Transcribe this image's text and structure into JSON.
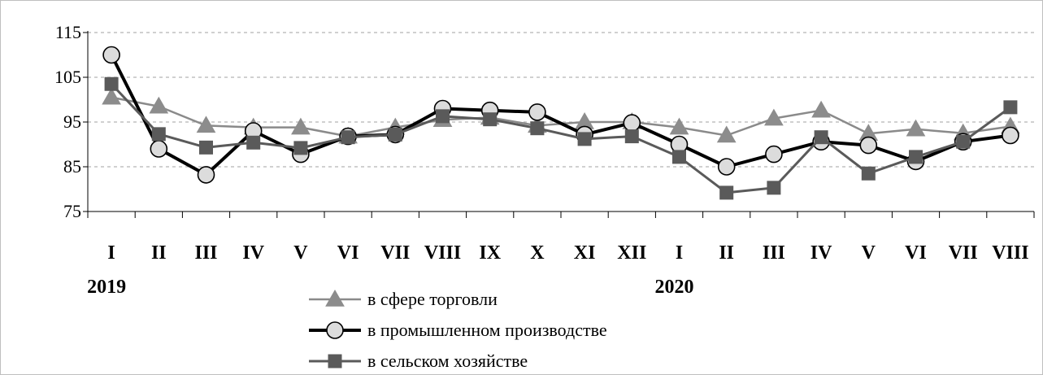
{
  "chart_data": {
    "type": "line",
    "categories": [
      "I",
      "II",
      "III",
      "IV",
      "V",
      "VI",
      "VII",
      "VIII",
      "IX",
      "X",
      "XI",
      "XII",
      "I",
      "II",
      "III",
      "IV",
      "V",
      "VI",
      "VII",
      "VIII"
    ],
    "year_labels": [
      {
        "label": "2019",
        "index": 0
      },
      {
        "label": "2020",
        "index": 12
      }
    ],
    "ylim": [
      75,
      115
    ],
    "yticks": [
      75,
      85,
      95,
      105,
      115
    ],
    "grid": true,
    "legend_position": "bottom-center",
    "series": [
      {
        "name": "в сфере торговли",
        "marker": "triangle",
        "color": "#8a8a8a",
        "values": [
          100.5,
          98.5,
          94.2,
          93.8,
          93.8,
          91.8,
          93.8,
          95.5,
          96.0,
          94.2,
          95.0,
          95.0,
          93.8,
          92.0,
          95.8,
          97.6,
          92.4,
          93.4,
          92.5,
          94.0
        ]
      },
      {
        "name": "в промышленном производстве",
        "marker": "circle",
        "color": "#000000",
        "values": [
          110.0,
          89.0,
          83.2,
          93.0,
          87.8,
          91.8,
          92.2,
          98.0,
          97.6,
          97.2,
          92.2,
          94.8,
          90.0,
          85.0,
          87.8,
          90.6,
          89.8,
          86.2,
          90.6,
          92.0
        ]
      },
      {
        "name": "в сельском хозяйстве",
        "marker": "square",
        "color": "#5a5a5a",
        "values": [
          103.5,
          92.3,
          89.3,
          90.4,
          89.2,
          91.6,
          92.2,
          96.3,
          95.6,
          93.6,
          91.2,
          91.8,
          87.2,
          79.2,
          80.3,
          91.6,
          83.5,
          87.2,
          90.6,
          98.3
        ]
      }
    ]
  }
}
